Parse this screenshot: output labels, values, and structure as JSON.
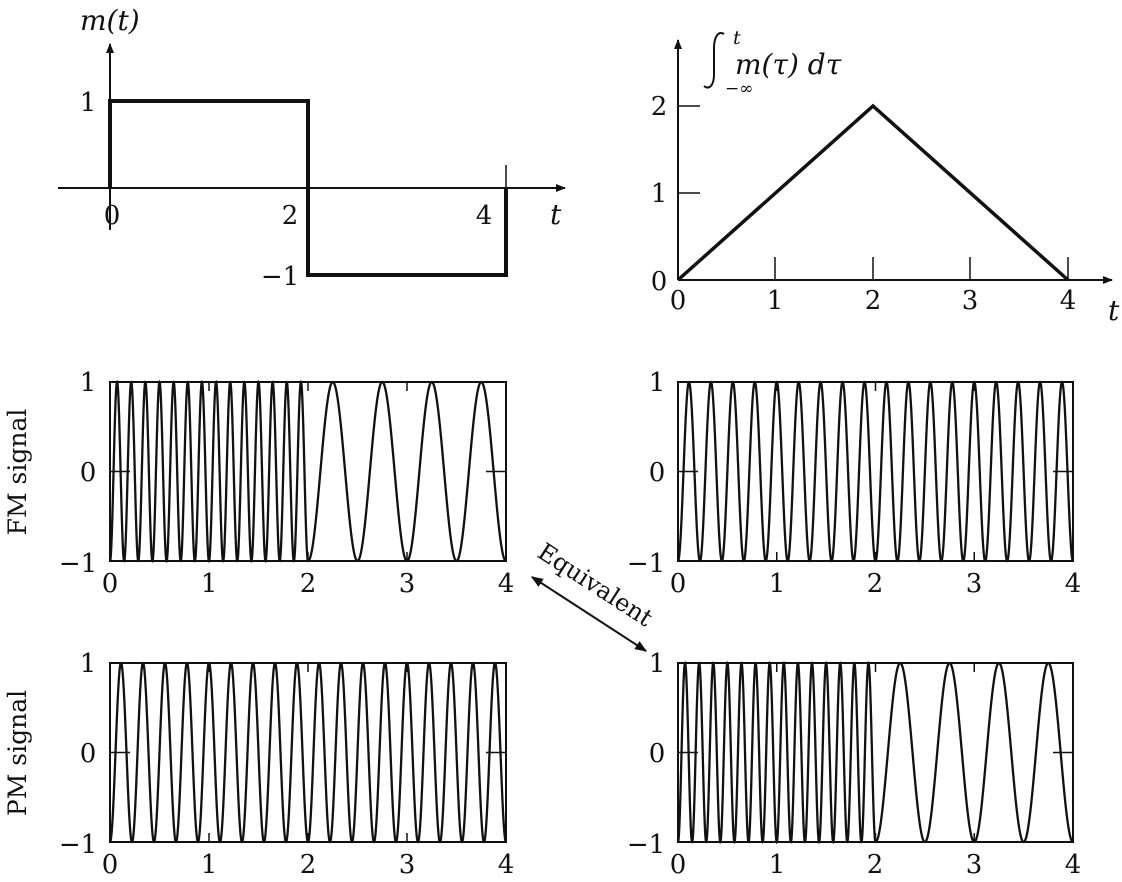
{
  "chart_data": [
    {
      "id": "message",
      "type": "line",
      "title": "m(t)",
      "xlabel": "t",
      "ylabel": "",
      "x": [
        0,
        0,
        2,
        2,
        4,
        4
      ],
      "y": [
        0,
        1,
        1,
        -1,
        -1,
        0
      ],
      "xlim": [
        0,
        4
      ],
      "ylim": [
        -1,
        1
      ],
      "xticks": [
        0,
        2,
        4
      ],
      "yticks": [
        1,
        -1
      ],
      "xtick_labels": [
        "0",
        "2",
        "4"
      ],
      "ytick_labels": [
        "1",
        "−1"
      ],
      "grid": false
    },
    {
      "id": "integral",
      "type": "line",
      "title_parts": {
        "lower": "−∞",
        "upper": "t",
        "body": "m(τ) dτ"
      },
      "xlabel": "t",
      "ylabel": "",
      "x": [
        0,
        2,
        4
      ],
      "y": [
        0,
        2,
        0
      ],
      "xlim": [
        0,
        4
      ],
      "ylim": [
        0,
        2
      ],
      "xticks": [
        0,
        1,
        2,
        3,
        4
      ],
      "yticks": [
        0,
        1,
        2
      ],
      "xtick_labels": [
        "0",
        "1",
        "2",
        "3",
        "4"
      ],
      "ytick_labels": [
        "0",
        "1",
        "2"
      ],
      "grid": false
    },
    {
      "id": "fm_message",
      "type": "line",
      "ylabel": "FM signal",
      "description_values": {
        "freq_segment_1": 7,
        "freq_segment_2": 2,
        "switch_t": 2
      },
      "xlim": [
        0,
        4
      ],
      "ylim": [
        -1,
        1
      ],
      "xticks": [
        0,
        1,
        2,
        3,
        4
      ],
      "yticks": [
        -1,
        0,
        1
      ],
      "xtick_labels": [
        "0",
        "1",
        "2",
        "3",
        "4"
      ],
      "ytick_labels": [
        "−1",
        "0",
        "1"
      ]
    },
    {
      "id": "fm_integral",
      "type": "line",
      "ylabel": "",
      "description_values": {
        "freq_segment_1": 4.5,
        "freq_segment_2": 4.5,
        "switch_t": 2
      },
      "xlim": [
        0,
        4
      ],
      "ylim": [
        -1,
        1
      ],
      "xticks": [
        0,
        1,
        2,
        3,
        4
      ],
      "yticks": [
        -1,
        0,
        1
      ],
      "xtick_labels": [
        "0",
        "1",
        "2",
        "3",
        "4"
      ],
      "ytick_labels": [
        "−1",
        "0",
        "1"
      ]
    },
    {
      "id": "pm_message",
      "type": "line",
      "ylabel": "PM signal",
      "description_values": {
        "freq_segment_1": 4.5,
        "freq_segment_2": 4.5,
        "switch_t": 2
      },
      "xlim": [
        0,
        4
      ],
      "ylim": [
        -1,
        1
      ],
      "xticks": [
        0,
        1,
        2,
        3,
        4
      ],
      "yticks": [
        -1,
        0,
        1
      ],
      "xtick_labels": [
        "0",
        "1",
        "2",
        "3",
        "4"
      ],
      "ytick_labels": [
        "−1",
        "0",
        "1"
      ]
    },
    {
      "id": "pm_integral",
      "type": "line",
      "ylabel": "",
      "description_values": {
        "freq_segment_1": 7,
        "freq_segment_2": 2,
        "switch_t": 2
      },
      "xlim": [
        0,
        4
      ],
      "ylim": [
        -1,
        1
      ],
      "xticks": [
        0,
        1,
        2,
        3,
        4
      ],
      "yticks": [
        -1,
        0,
        1
      ],
      "xtick_labels": [
        "0",
        "1",
        "2",
        "3",
        "4"
      ],
      "ytick_labels": [
        "−1",
        "0",
        "1"
      ]
    }
  ],
  "annotation": {
    "text": "Equivalent"
  }
}
